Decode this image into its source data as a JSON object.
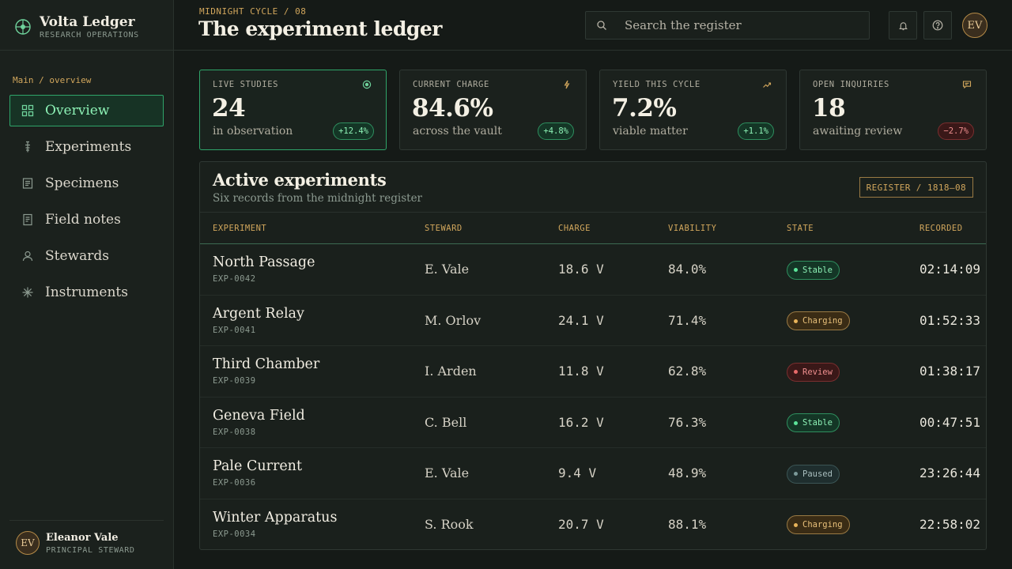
{
  "brand": {
    "name": "Volta Ledger",
    "subtitle": "RESEARCH OPERATIONS"
  },
  "sidebar": {
    "breadcrumb": "Main / overview",
    "items": [
      {
        "label": "Overview",
        "icon": "grid-icon",
        "active": true
      },
      {
        "label": "Experiments",
        "icon": "flask-icon",
        "active": false
      },
      {
        "label": "Specimens",
        "icon": "document-icon",
        "active": false
      },
      {
        "label": "Field notes",
        "icon": "notes-icon",
        "active": false
      },
      {
        "label": "Stewards",
        "icon": "user-icon",
        "active": false
      },
      {
        "label": "Instruments",
        "icon": "asterisk-icon",
        "active": false
      }
    ],
    "user": {
      "initials": "EV",
      "name": "Eleanor Vale",
      "role": "PRINCIPAL STEWARD"
    }
  },
  "header": {
    "eyebrow": "MIDNIGHT CYCLE / 08",
    "title": "The experiment ledger",
    "search_placeholder": "Search the register",
    "avatar_initials": "EV"
  },
  "kpis": [
    {
      "label": "LIVE STUDIES",
      "value": "24",
      "sub": "in observation",
      "delta": "+12.4%",
      "trend": "up",
      "icon": "target-icon"
    },
    {
      "label": "CURRENT CHARGE",
      "value": "84.6%",
      "sub": "across the vault",
      "delta": "+4.8%",
      "trend": "up",
      "icon": "bolt-icon"
    },
    {
      "label": "YIELD THIS CYCLE",
      "value": "7.2%",
      "sub": "viable matter",
      "delta": "+1.1%",
      "trend": "up",
      "icon": "trend-up-icon"
    },
    {
      "label": "OPEN INQUIRIES",
      "value": "18",
      "sub": "awaiting review",
      "delta": "−2.7%",
      "trend": "down",
      "icon": "chat-icon"
    }
  ],
  "table": {
    "title": "Active experiments",
    "subtitle": "Six records from the midnight register",
    "register_badge": "REGISTER / 1818–08",
    "columns": [
      "EXPERIMENT",
      "STEWARD",
      "CHARGE",
      "VIABILITY",
      "STATE",
      "RECORDED"
    ],
    "rows": [
      {
        "name": "North Passage",
        "id": "EXP-0042",
        "steward": "E. Vale",
        "charge": "18.6 V",
        "viability": "84.0%",
        "state": "Stable",
        "recorded": "02:14:09"
      },
      {
        "name": "Argent Relay",
        "id": "EXP-0041",
        "steward": "M. Orlov",
        "charge": "24.1 V",
        "viability": "71.4%",
        "state": "Charging",
        "recorded": "01:52:33"
      },
      {
        "name": "Third Chamber",
        "id": "EXP-0039",
        "steward": "I. Arden",
        "charge": "11.8 V",
        "viability": "62.8%",
        "state": "Review",
        "recorded": "01:38:17"
      },
      {
        "name": "Geneva Field",
        "id": "EXP-0038",
        "steward": "C. Bell",
        "charge": "16.2 V",
        "viability": "76.3%",
        "state": "Stable",
        "recorded": "00:47:51"
      },
      {
        "name": "Pale Current",
        "id": "EXP-0036",
        "steward": "E. Vale",
        "charge": "9.4 V",
        "viability": "48.9%",
        "state": "Paused",
        "recorded": "23:26:44"
      },
      {
        "name": "Winter Apparatus",
        "id": "EXP-0034",
        "steward": "S. Rook",
        "charge": "20.7 V",
        "viability": "88.1%",
        "state": "Charging",
        "recorded": "22:58:02"
      }
    ]
  },
  "colors": {
    "accent": "#2fa56a",
    "accent_text": "#8df2b6",
    "amber": "#d1a65c",
    "alert": "#e86a6a"
  }
}
